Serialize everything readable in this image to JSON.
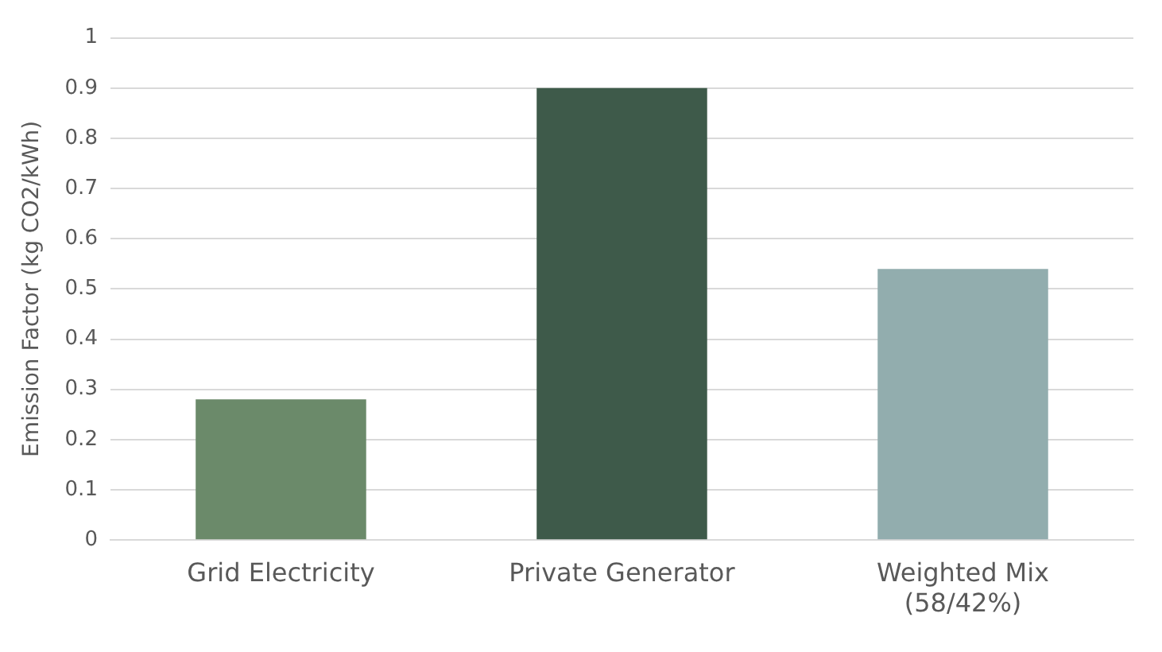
{
  "chart_data": {
    "type": "bar",
    "ylabel": "Emission Factor (kg CO2/kWh)",
    "categories": [
      "Grid Electricity",
      "Private Generator",
      "Weighted Mix (58/42%)"
    ],
    "values": [
      0.28,
      0.9,
      0.54
    ],
    "colors": [
      "#6b8a6a",
      "#3e5a4a",
      "#92adae"
    ],
    "ylim": [
      0,
      1
    ],
    "yticks": [
      0,
      0.1,
      0.2,
      0.3,
      0.4,
      0.5,
      0.6,
      0.7,
      0.8,
      0.9,
      1
    ],
    "grid": "y",
    "legend": false
  }
}
